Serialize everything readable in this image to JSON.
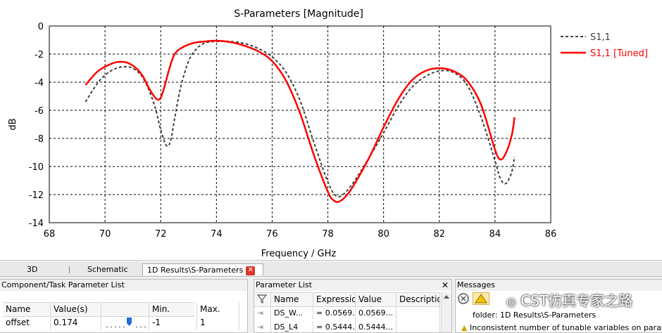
{
  "chart_data": {
    "type": "line",
    "title": "S-Parameters [Magnitude]",
    "xlabel": "Frequency / GHz",
    "ylabel": "dB",
    "xlim": [
      68,
      86
    ],
    "ylim": [
      -14,
      0
    ],
    "xticks": [
      "68",
      "70",
      "72",
      "74",
      "76",
      "78",
      "80",
      "82",
      "84",
      "86"
    ],
    "yticks": [
      "0",
      "-2",
      "-4",
      "-6",
      "-8",
      "-10",
      "-12",
      "-14"
    ],
    "grid": true,
    "legend": "top-right",
    "series": [
      {
        "name": "S1,1",
        "style": "dashed",
        "color": "#404040",
        "x": [
          69.3,
          69.8,
          70.3,
          70.8,
          71.2,
          71.5,
          71.8,
          72.0,
          72.2,
          72.35,
          72.5,
          72.7,
          73.0,
          73.3,
          73.6,
          74.0,
          74.5,
          75.0,
          75.5,
          76.0,
          76.5,
          77.0,
          77.5,
          78.0,
          78.3,
          78.6,
          79.0,
          79.5,
          80.0,
          80.5,
          81.0,
          81.5,
          82.0,
          82.5,
          83.0,
          83.5,
          84.0,
          84.2,
          84.4,
          84.6,
          84.7
        ],
        "y": [
          -5.4,
          -3.9,
          -3.1,
          -2.9,
          -3.3,
          -4.2,
          -5.8,
          -7.4,
          -8.5,
          -8.2,
          -6.6,
          -4.5,
          -2.5,
          -1.6,
          -1.2,
          -1.1,
          -1.1,
          -1.25,
          -1.6,
          -2.2,
          -3.3,
          -5.3,
          -8.3,
          -11.1,
          -12.1,
          -11.9,
          -10.9,
          -9.3,
          -7.6,
          -5.8,
          -4.4,
          -3.6,
          -3.2,
          -3.3,
          -4.2,
          -6.5,
          -9.6,
          -10.9,
          -11.2,
          -10.4,
          -9.3
        ]
      },
      {
        "name": "S1,1 [Tuned]",
        "style": "solid",
        "color": "#ff0000",
        "x": [
          69.3,
          69.7,
          70.1,
          70.5,
          70.9,
          71.3,
          71.6,
          71.85,
          72.0,
          72.15,
          72.3,
          72.5,
          72.8,
          73.2,
          73.6,
          74.0,
          74.5,
          75.0,
          75.5,
          76.0,
          76.5,
          77.0,
          77.5,
          78.0,
          78.2,
          78.4,
          78.7,
          79.0,
          79.5,
          80.0,
          80.5,
          81.0,
          81.5,
          82.0,
          82.5,
          83.0,
          83.5,
          84.0,
          84.2,
          84.4,
          84.6,
          84.7
        ],
        "y": [
          -4.2,
          -3.3,
          -2.8,
          -2.55,
          -2.7,
          -3.4,
          -4.5,
          -5.2,
          -5.1,
          -4.2,
          -3.1,
          -2.0,
          -1.5,
          -1.2,
          -1.1,
          -1.05,
          -1.15,
          -1.4,
          -1.8,
          -2.5,
          -3.9,
          -6.2,
          -9.2,
          -11.8,
          -12.4,
          -12.5,
          -12.0,
          -11.1,
          -9.3,
          -7.2,
          -5.3,
          -3.9,
          -3.2,
          -3.0,
          -3.2,
          -3.9,
          -5.6,
          -8.8,
          -9.5,
          -9.0,
          -7.8,
          -6.5
        ]
      }
    ]
  },
  "tabs": [
    {
      "label": "3D"
    },
    {
      "label": "Schematic"
    },
    {
      "label": "1D Results\\S-Parameters",
      "close": "✕"
    }
  ],
  "component_panel": {
    "title": "Component/Task Parameter List",
    "headers": [
      "Name",
      "Value(s)",
      "",
      "Min.",
      "Max."
    ],
    "rows": [
      [
        "offset",
        "0.174",
        "",
        "-1",
        "1"
      ]
    ]
  },
  "parameter_panel": {
    "title": "Parameter List",
    "close": "✕",
    "filter_icon": "filter-icon",
    "headers": [
      "Name",
      "Expressio",
      "Value",
      "Descriptio"
    ],
    "rows": [
      [
        "DS_W...",
        "= 0.0569...",
        "0.0569...",
        ""
      ],
      [
        "DS_L4",
        "= 0.5444...",
        "0.5444...",
        ""
      ]
    ]
  },
  "messages_panel": {
    "title": "Messages",
    "lines": [
      "folder: 1D Results\\S-Parameters",
      "Inconsistent number of tunable variables on paramet"
    ],
    "watermark": "CST仿真专家之路"
  },
  "colors": {
    "tuned": "#ff0000",
    "original": "#404040",
    "grid": "#000000"
  }
}
